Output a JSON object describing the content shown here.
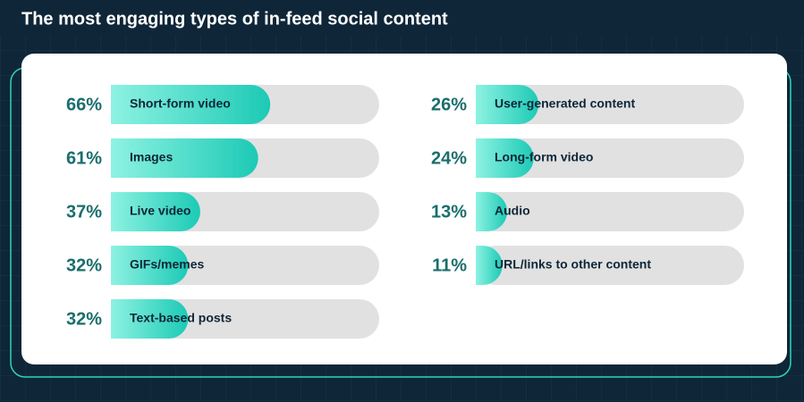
{
  "chart_data": {
    "type": "bar",
    "title": "The most engaging types of in-feed social content",
    "categories": [
      "Short-form video",
      "Images",
      "Live video",
      "GIFs/memes",
      "Text-based posts",
      "User-generated content",
      "Long-form video",
      "Audio",
      "URL/links to other content"
    ],
    "values": [
      66,
      61,
      37,
      32,
      32,
      26,
      24,
      13,
      11
    ],
    "value_labels": [
      "66%",
      "61%",
      "37%",
      "32%",
      "32%",
      "26%",
      "24%",
      "13%",
      "11%"
    ],
    "color": "#22cdb8"
  }
}
